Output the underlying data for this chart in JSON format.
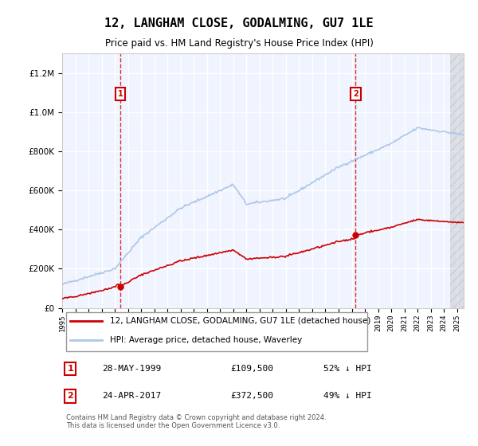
{
  "title": "12, LANGHAM CLOSE, GODALMING, GU7 1LE",
  "subtitle": "Price paid vs. HM Land Registry's House Price Index (HPI)",
  "legend_line1": "12, LANGHAM CLOSE, GODALMING, GU7 1LE (detached house)",
  "legend_line2": "HPI: Average price, detached house, Waverley",
  "sale1_date": "28-MAY-1999",
  "sale1_price": 109500,
  "sale1_label": "52% ↓ HPI",
  "sale1_year": 1999.41,
  "sale2_date": "24-APR-2017",
  "sale2_price": 372500,
  "sale2_label": "49% ↓ HPI",
  "sale2_year": 2017.3,
  "footer": "Contains HM Land Registry data © Crown copyright and database right 2024.\nThis data is licensed under the Open Government Licence v3.0.",
  "hpi_color": "#aec6e8",
  "price_color": "#cc0000",
  "bg_color": "#ddeeff",
  "plot_bg": "#f0f4ff",
  "grid_color": "#ffffff",
  "annotation_box_color": "#cc0000",
  "ylim": [
    0,
    1300000
  ],
  "xlim_start": 1995.0,
  "xlim_end": 2025.5
}
